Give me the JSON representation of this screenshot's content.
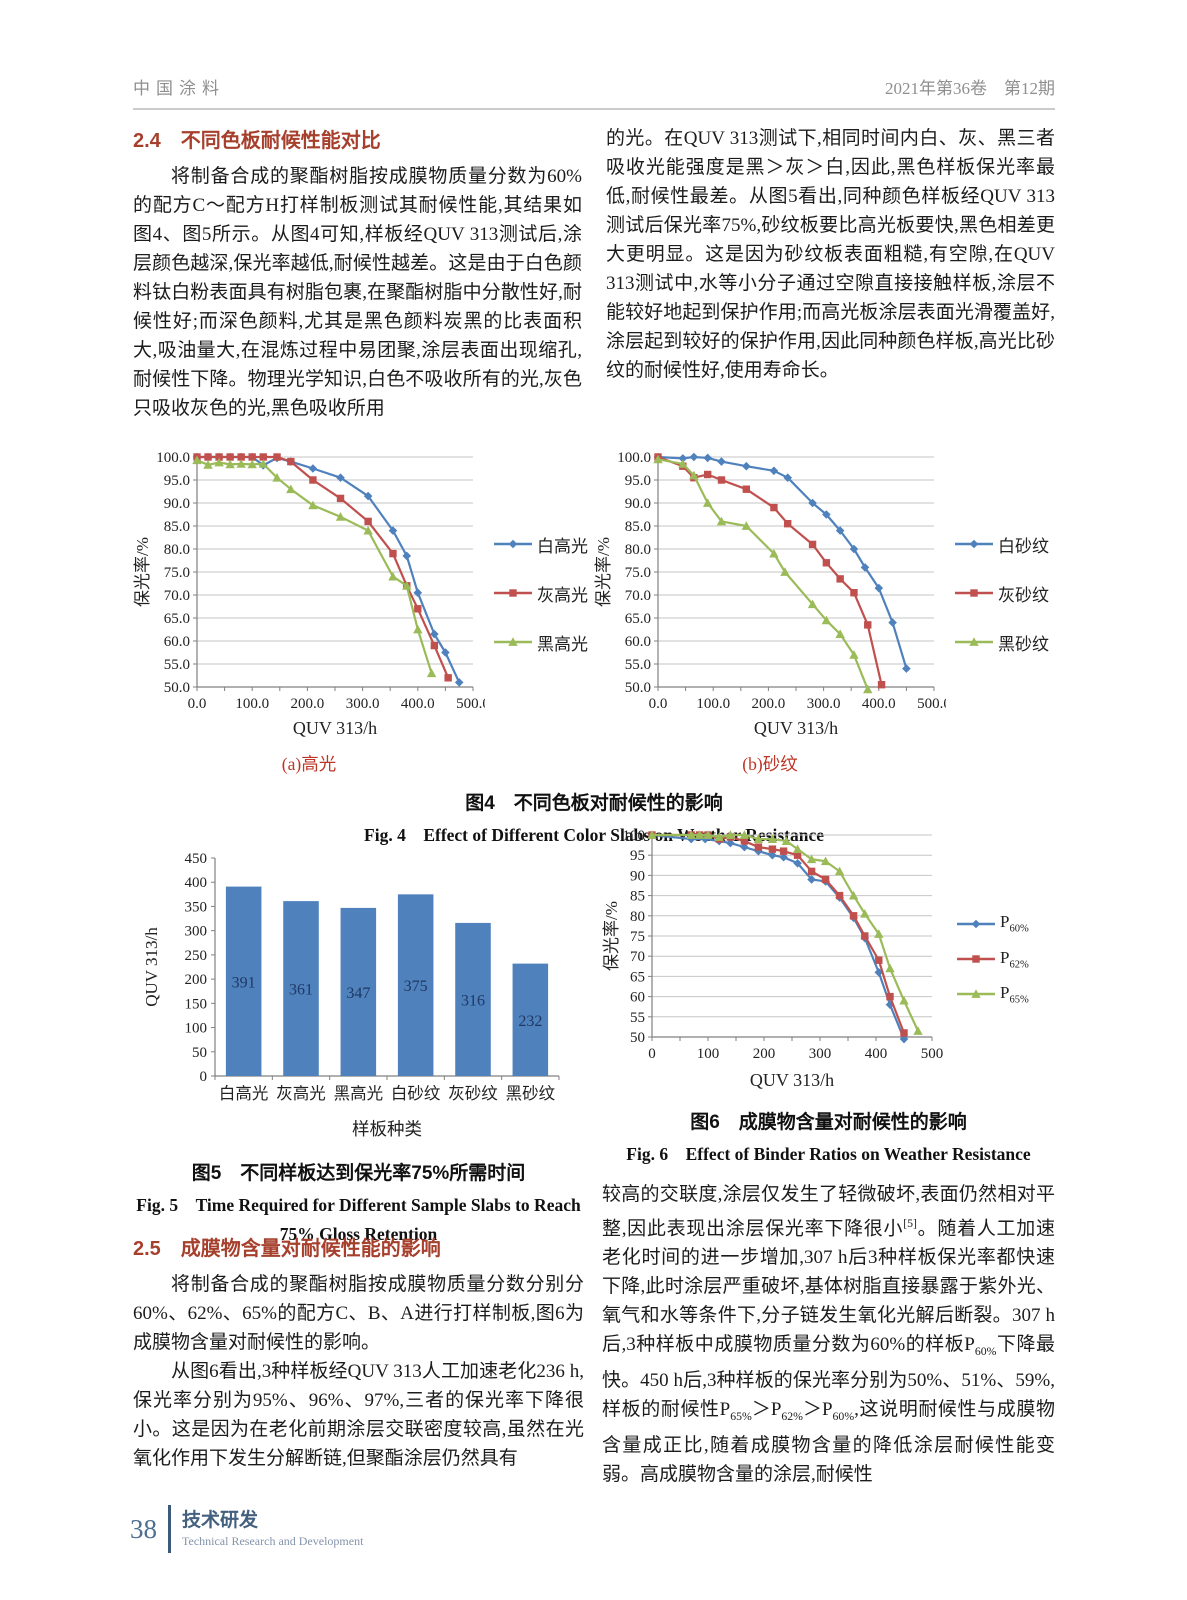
{
  "page": {
    "journal": "中国涂料",
    "issue": "2021年第36卷　第12期",
    "footer": {
      "page_number": "38",
      "section": "技术研发",
      "section_en": "Technical Research and Development"
    }
  },
  "sections": {
    "s24": {
      "heading": "2.4　不同色板耐候性能对比",
      "p1": "将制备合成的聚酯树脂按成膜物质量分数为60%的配方C～配方H打样制板测试其耐候性能,其结果如图4、图5所示。从图4可知,样板经QUV 313测试后,涂层颜色越深,保光率越低,耐候性越差。这是由于白色颜料钛白粉表面具有树脂包裹,在聚酯树脂中分散性好,耐候性好;而深色颜料,尤其是黑色颜料炭黑的比表面积大,吸油量大,在混炼过程中易团聚,涂层表面出现缩孔,耐候性下降。物理光学知识,白色不吸收所有的光,灰色只吸收灰色的光,黑色吸收所用"
    },
    "right_top": "的光。在QUV 313测试下,相同时间内白、灰、黑三者吸收光能强度是黑＞灰＞白,因此,黑色样板保光率最低,耐候性最差。从图5看出,同种颜色样板经QUV 313测试后保光率75%,砂纹板要比高光板要快,黑色相差更大更明显。这是因为砂纹板表面粗糙,有空隙,在QUV 313测试中,水等小分子通过空隙直接接触样板,涂层不能较好地起到保护作用;而高光板涂层表面光滑覆盖好,涂层起到较好的保护作用,因此同种颜色样板,高光比砂纹的耐候性好,使用寿命长。",
    "s25": {
      "heading": "2.5　成膜物含量对耐候性能的影响",
      "p1": "将制备合成的聚酯树脂按成膜物质量分数分别分60%、62%、65%的配方C、B、A进行打样制板,图6为成膜物含量对耐候性的影响。",
      "p2": "从图6看出,3种样板经QUV 313人工加速老化236 h,保光率分别为95%、96%、97%,三者的保光率下降很小。这是因为在老化前期涂层交联密度较高,虽然在光氧化作用下发生分解断链,但聚酯涂层仍然具有"
    },
    "right_bottom": "较高的交联度,涂层仅发生了轻微破坏,表面仍然相对平整,因此表现出涂层保光率下降很小^{[5]}。随着人工加速老化时间的进一步增加,307 h后3种样板保光率都快速下降,此时涂层严重破坏,基体树脂直接暴露于紫外光、氧气和水等条件下,分子链发生氧化光解后断裂。307 h后,3种样板中成膜物质量分数为60%的样板P_{60%}下降最快。450 h后,3种样板的保光率分别为50%、51%、59%,样板的耐候性P_{65%}＞P_{62%}＞P_{60%},这说明耐候性与成膜物含量成正比,随着成膜物含量的降低涂层耐候性能变弱。高成膜物含量的涂层,耐候性"
  },
  "figures": {
    "fig4": {
      "sub_a": "(a)高光",
      "sub_b": "(b)砂纹",
      "caption_cn": "图4　不同色板对耐候性的影响",
      "caption_en": "Fig. 4　Effect of Different Color Slabs on Weather Resistance"
    },
    "fig5": {
      "caption_cn": "图5　不同样板达到保光率75%所需时间",
      "caption_en_1": "Fig. 5　Time Required for Different Sample Slabs to Reach",
      "caption_en_2": "75% Gloss Retention"
    },
    "fig6": {
      "caption_cn": "图6　成膜物含量对耐候性的影响",
      "caption_en": "Fig. 6　Effect of Binder Ratios on Weather Resistance"
    }
  },
  "colors": {
    "series_blue": "#4F81BD",
    "series_red": "#C0504D",
    "series_green": "#9BBB59",
    "heading_red": "#A6402D",
    "subcaption_red": "#BE3526",
    "grid": "#c6c6c6",
    "axis": "#808080",
    "bar_value_label": "#1F3864"
  },
  "chart_data": [
    {
      "id": "fig4a",
      "type": "line",
      "title": "(a)高光",
      "xlabel": "QUV 313/h",
      "ylabel": "保光率/%",
      "xlim": [
        0,
        500
      ],
      "xstep": 100,
      "ylim": [
        50,
        100
      ],
      "ystep": 5,
      "x_decimals": 1,
      "y_decimals": 1,
      "grid": true,
      "legend_position": "right",
      "series": [
        {
          "name": "白高光",
          "color": "#4F81BD",
          "marker": "diamond",
          "points": [
            [
              0,
              100
            ],
            [
              20,
              100
            ],
            [
              40,
              100
            ],
            [
              60,
              100
            ],
            [
              80,
              100
            ],
            [
              100,
              100
            ],
            [
              120,
              98.2
            ],
            [
              145,
              99.8
            ],
            [
              170,
              99
            ],
            [
              210,
              97.5
            ],
            [
              260,
              95.5
            ],
            [
              310,
              91.5
            ],
            [
              355,
              84
            ],
            [
              380,
              78.5
            ],
            [
              400,
              70.5
            ],
            [
              430,
              61.5
            ],
            [
              450,
              57.5
            ],
            [
              475,
              51
            ]
          ]
        },
        {
          "name": "灰高光",
          "color": "#C0504D",
          "marker": "square",
          "points": [
            [
              0,
              100
            ],
            [
              20,
              100
            ],
            [
              40,
              100
            ],
            [
              60,
              100
            ],
            [
              80,
              100
            ],
            [
              100,
              100
            ],
            [
              120,
              100
            ],
            [
              145,
              100
            ],
            [
              170,
              99
            ],
            [
              210,
              95
            ],
            [
              260,
              91
            ],
            [
              310,
              86
            ],
            [
              355,
              79
            ],
            [
              380,
              72
            ],
            [
              400,
              67
            ],
            [
              430,
              59
            ],
            [
              455,
              52
            ]
          ]
        },
        {
          "name": "黑高光",
          "color": "#9BBB59",
          "marker": "triangle",
          "points": [
            [
              0,
              99.3
            ],
            [
              20,
              98.3
            ],
            [
              40,
              98.8
            ],
            [
              60,
              98.4
            ],
            [
              80,
              98.5
            ],
            [
              100,
              98.4
            ],
            [
              120,
              98.5
            ],
            [
              145,
              95.5
            ],
            [
              170,
              93
            ],
            [
              210,
              89.5
            ],
            [
              260,
              87
            ],
            [
              310,
              84
            ],
            [
              355,
              74
            ],
            [
              380,
              72
            ],
            [
              400,
              62.5
            ],
            [
              425,
              53
            ]
          ]
        }
      ]
    },
    {
      "id": "fig4b",
      "type": "line",
      "title": "(b)砂纹",
      "xlabel": "QUV 313/h",
      "ylabel": "保光率/%",
      "xlim": [
        0,
        500
      ],
      "xstep": 100,
      "ylim": [
        50,
        100
      ],
      "ystep": 5,
      "x_decimals": 1,
      "y_decimals": 1,
      "grid": true,
      "legend_position": "right",
      "series": [
        {
          "name": "白砂纹",
          "color": "#4F81BD",
          "marker": "diamond",
          "points": [
            [
              0,
              100
            ],
            [
              45,
              99.7
            ],
            [
              65,
              100
            ],
            [
              90,
              99.8
            ],
            [
              115,
              99
            ],
            [
              160,
              98
            ],
            [
              210,
              97
            ],
            [
              235,
              95.5
            ],
            [
              280,
              90
            ],
            [
              305,
              87.5
            ],
            [
              330,
              84
            ],
            [
              355,
              80
            ],
            [
              375,
              76
            ],
            [
              400,
              71.5
            ],
            [
              425,
              64
            ],
            [
              450,
              54
            ]
          ]
        },
        {
          "name": "灰砂纹",
          "color": "#C0504D",
          "marker": "square",
          "points": [
            [
              0,
              100
            ],
            [
              45,
              98
            ],
            [
              65,
              95.5
            ],
            [
              90,
              96.2
            ],
            [
              115,
              95
            ],
            [
              160,
              93
            ],
            [
              210,
              89
            ],
            [
              235,
              85.5
            ],
            [
              280,
              81
            ],
            [
              305,
              77
            ],
            [
              330,
              73.5
            ],
            [
              355,
              70.5
            ],
            [
              380,
              63.5
            ],
            [
              405,
              50.5
            ]
          ]
        },
        {
          "name": "黑砂纹",
          "color": "#9BBB59",
          "marker": "triangle",
          "points": [
            [
              0,
              99.5
            ],
            [
              45,
              98.5
            ],
            [
              65,
              96
            ],
            [
              90,
              90
            ],
            [
              115,
              86
            ],
            [
              160,
              85
            ],
            [
              210,
              79
            ],
            [
              230,
              75
            ],
            [
              280,
              68
            ],
            [
              305,
              64.5
            ],
            [
              330,
              61.5
            ],
            [
              355,
              57
            ],
            [
              380,
              49.5
            ]
          ]
        }
      ]
    },
    {
      "id": "fig5",
      "type": "bar",
      "title": "不同样板达到保光率75%所需时间",
      "categories": [
        "白高光",
        "灰高光",
        "黑高光",
        "白砂纹",
        "灰砂纹",
        "黑砂纹"
      ],
      "values": [
        391,
        361,
        347,
        375,
        316,
        232
      ],
      "xlabel": "样板种类",
      "ylabel": "QUV 313/h",
      "ylim": [
        0,
        450
      ],
      "ystep": 50,
      "grid": false,
      "bar_color": "#4F81BD",
      "value_label_color": "#1F3864"
    },
    {
      "id": "fig6",
      "type": "line",
      "title": "成膜物含量对耐候性的影响",
      "xlabel": "QUV 313/h",
      "ylabel": "保光率/%",
      "xlim": [
        0,
        500
      ],
      "xstep": 100,
      "ylim": [
        50,
        100
      ],
      "ystep": 5,
      "x_decimals": 0,
      "y_decimals": 0,
      "grid": true,
      "legend_position": "right",
      "series": [
        {
          "name": "P_{60%}",
          "color": "#4F81BD",
          "marker": "diamond",
          "points": [
            [
              0,
              100
            ],
            [
              70,
              99
            ],
            [
              95,
              99
            ],
            [
              120,
              98.5
            ],
            [
              140,
              98
            ],
            [
              165,
              97
            ],
            [
              190,
              96
            ],
            [
              215,
              95
            ],
            [
              235,
              94.5
            ],
            [
              260,
              93
            ],
            [
              285,
              89
            ],
            [
              310,
              88.5
            ],
            [
              335,
              84.5
            ],
            [
              360,
              79.5
            ],
            [
              380,
              74.5
            ],
            [
              405,
              66
            ],
            [
              425,
              58
            ],
            [
              450,
              49.5
            ]
          ]
        },
        {
          "name": "P_{62%}",
          "color": "#C0504D",
          "marker": "square",
          "points": [
            [
              0,
              100
            ],
            [
              70,
              100
            ],
            [
              85,
              100
            ],
            [
              100,
              100
            ],
            [
              120,
              99
            ],
            [
              140,
              99.5
            ],
            [
              165,
              98.5
            ],
            [
              190,
              97
            ],
            [
              215,
              96.5
            ],
            [
              235,
              96
            ],
            [
              260,
              95
            ],
            [
              285,
              91
            ],
            [
              310,
              89
            ],
            [
              335,
              85
            ],
            [
              360,
              80
            ],
            [
              380,
              75
            ],
            [
              405,
              69
            ],
            [
              425,
              60
            ],
            [
              450,
              51
            ]
          ]
        },
        {
          "name": "P_{65%}",
          "color": "#9BBB59",
          "marker": "triangle",
          "points": [
            [
              0,
              100
            ],
            [
              70,
              100
            ],
            [
              85,
              100
            ],
            [
              100,
              100
            ],
            [
              120,
              99.5
            ],
            [
              140,
              100
            ],
            [
              165,
              100
            ],
            [
              190,
              99
            ],
            [
              215,
              99
            ],
            [
              240,
              98.5
            ],
            [
              260,
              96.5
            ],
            [
              285,
              94
            ],
            [
              310,
              93.5
            ],
            [
              335,
              91
            ],
            [
              360,
              85
            ],
            [
              380,
              80.5
            ],
            [
              405,
              75.5
            ],
            [
              425,
              67
            ],
            [
              450,
              59
            ],
            [
              475,
              51.5
            ]
          ]
        }
      ]
    }
  ]
}
